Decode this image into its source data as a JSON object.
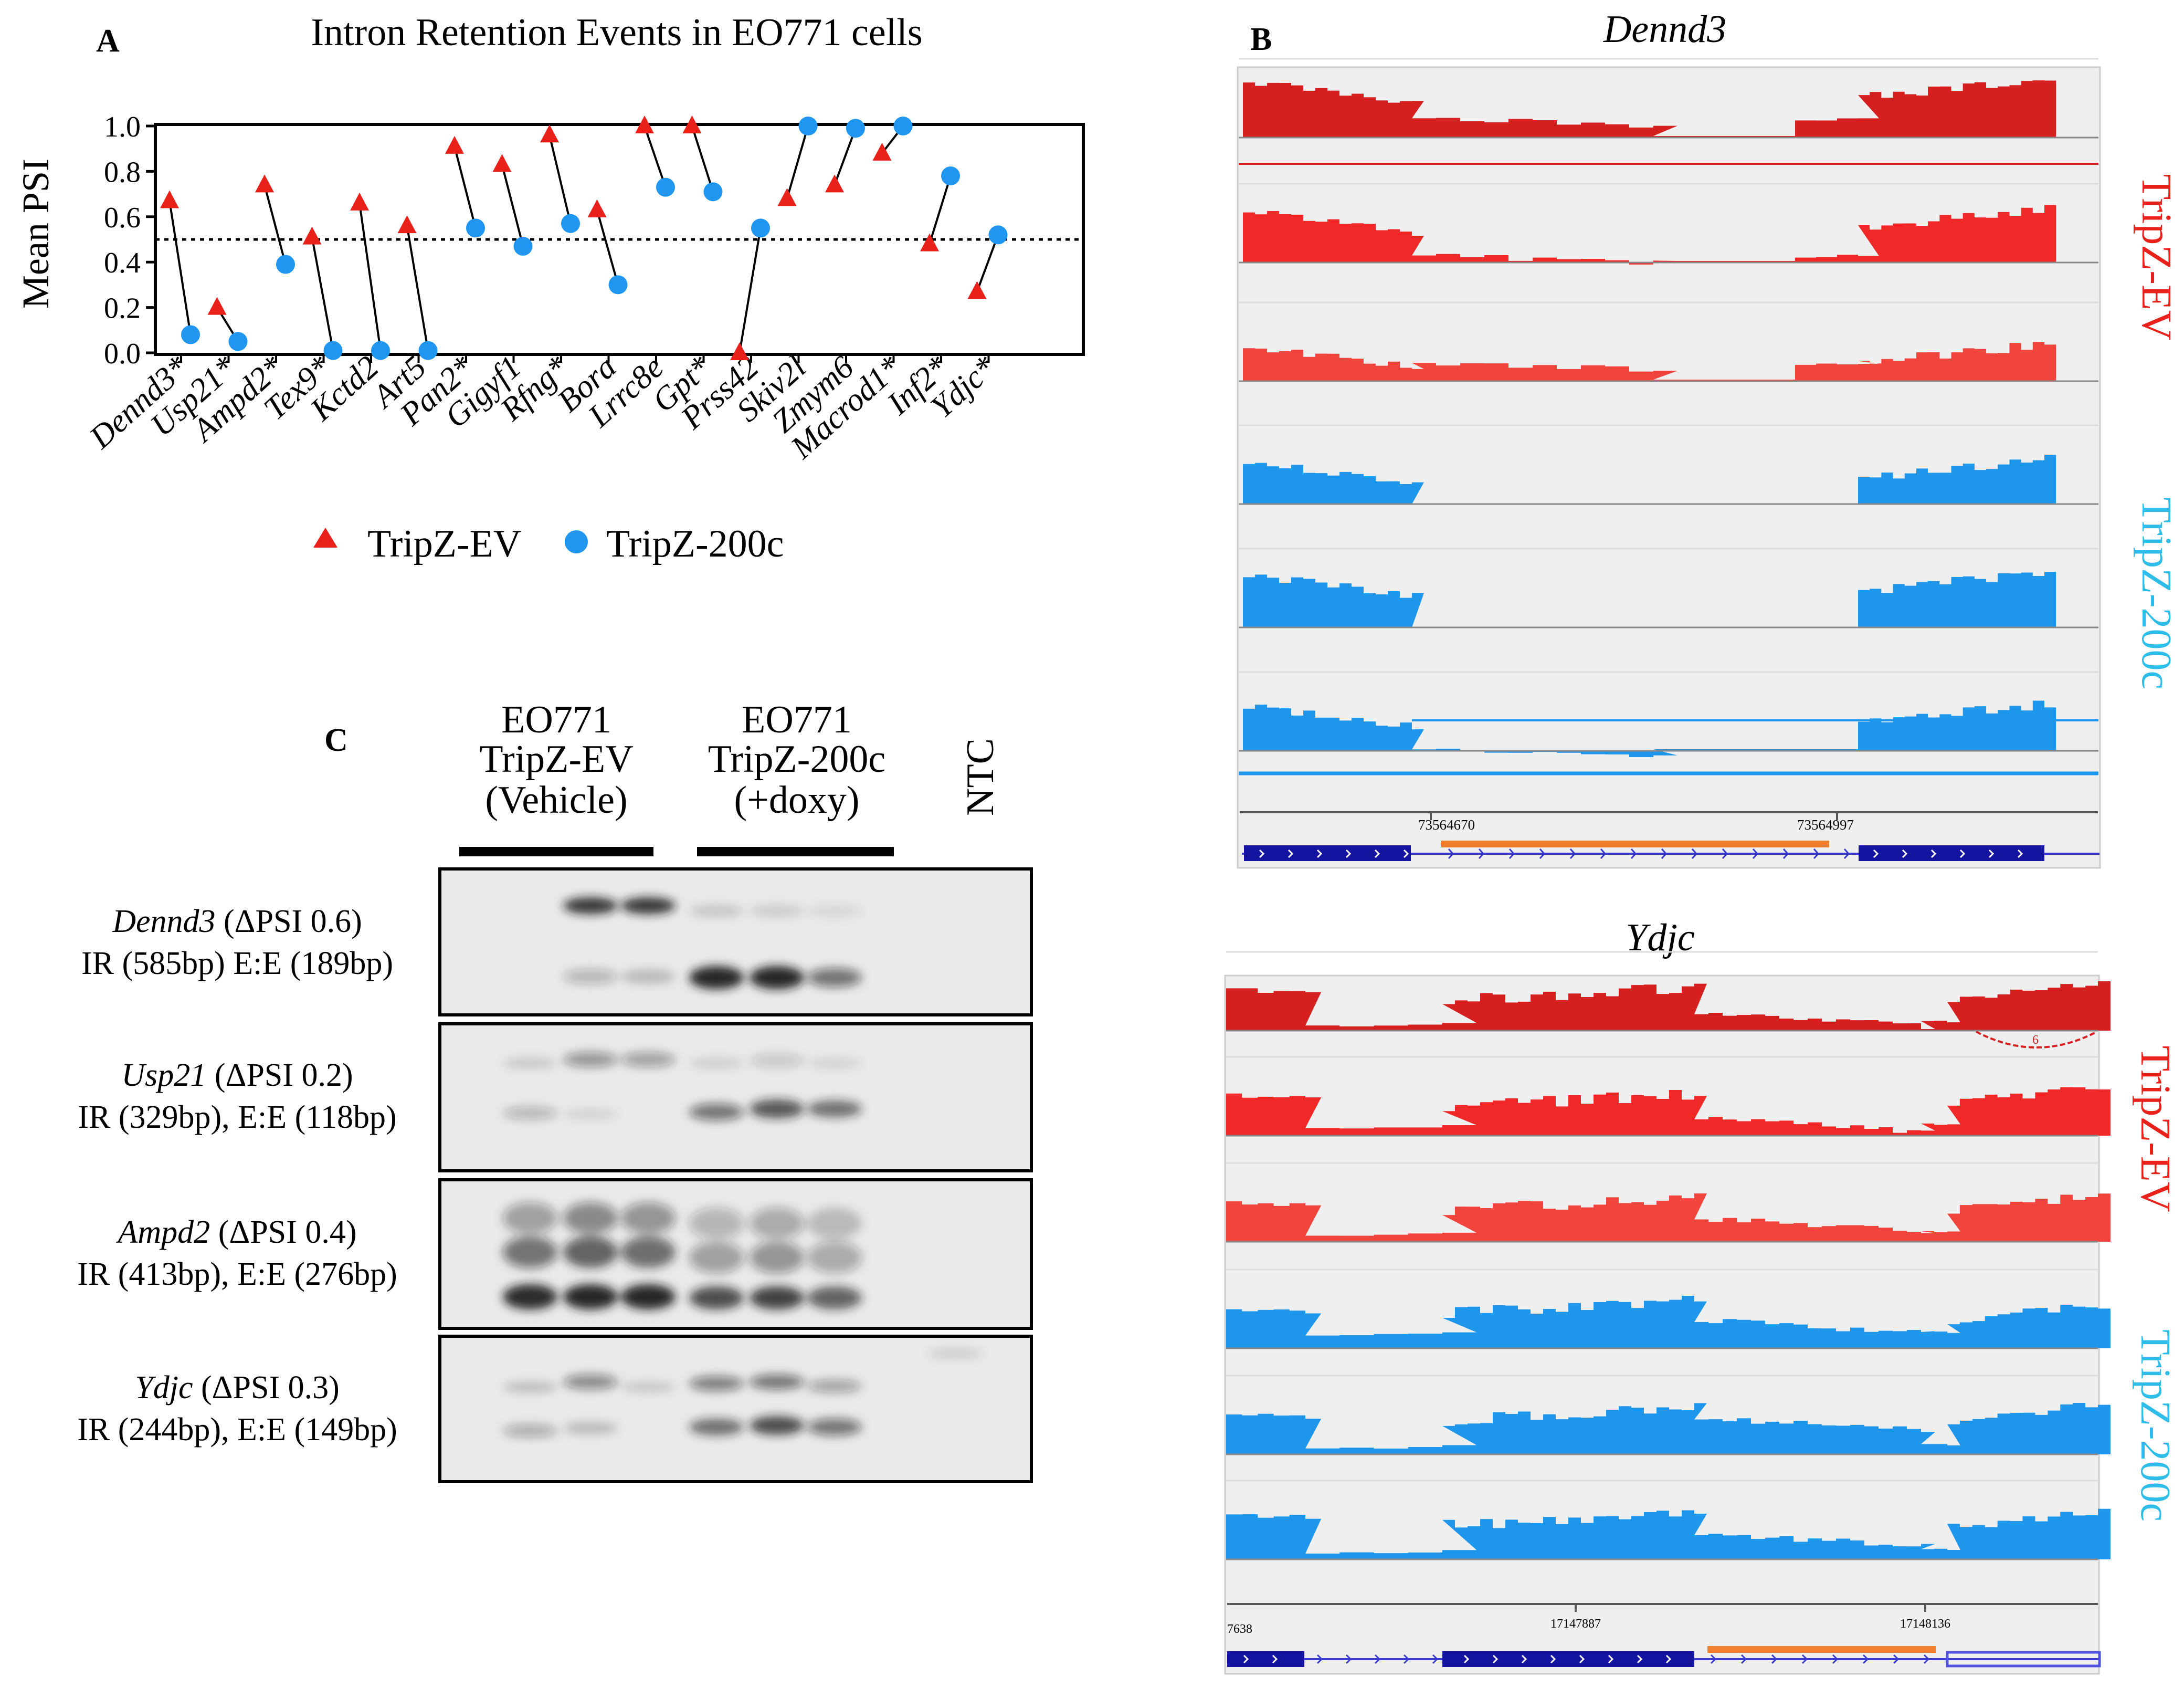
{
  "colors": {
    "ev": "#e8221a",
    "c200": "#2196f0",
    "ev_dark": "#d62020",
    "ev_mid": "#f02828",
    "ev_light": "#f0443c",
    "blue": "#1e96ec",
    "navy": "#1414a0",
    "orange": "#f08030",
    "igv_bg": "#efefef"
  },
  "panel_a": {
    "letter": "A",
    "title": "Intron Retention Events in EO771 cells",
    "legend": {
      "ev": "TripZ-EV",
      "c200": "TripZ-200c"
    }
  },
  "chart_data": {
    "type": "scatter",
    "title": "Intron Retention Events in EO771 cells",
    "ylabel": "Mean PSI",
    "xlabel": "",
    "ylim": [
      0,
      1
    ],
    "yticks": [
      "0.0",
      "0.2",
      "0.4",
      "0.6",
      "0.8",
      "1.0"
    ],
    "reference_line": 0.5,
    "categories": [
      "Dennd3*",
      "Usp21*",
      "Ampd2*",
      "Tex9*",
      "Kctd2",
      "Art5",
      "Pan2*",
      "Gigyf1",
      "Rfng*",
      "Bora",
      "Lrrc8e",
      "Gpt*",
      "Prss42",
      "Skiv2l",
      "Zmym6",
      "Macrod1*",
      "Inf2*",
      "Ydjc*"
    ],
    "series": [
      {
        "name": "TripZ-EV",
        "marker": "triangle",
        "values": [
          0.67,
          0.2,
          0.74,
          0.51,
          0.66,
          0.56,
          0.91,
          0.83,
          0.96,
          0.63,
          1.0,
          1.0,
          0.0,
          0.68,
          0.74,
          0.88,
          0.48,
          0.27
        ]
      },
      {
        "name": "TripZ-200c",
        "marker": "circle",
        "values": [
          0.08,
          0.05,
          0.39,
          0.01,
          0.01,
          0.01,
          0.55,
          0.47,
          0.57,
          0.3,
          0.73,
          0.71,
          0.55,
          1.0,
          0.99,
          1.0,
          0.78,
          0.52
        ]
      }
    ]
  },
  "panel_b": {
    "letter": "B",
    "dennd3": {
      "gene": "Dennd3",
      "coord1": "73564670",
      "coord2": "73564997"
    },
    "ydjc": {
      "gene": "Ydjc",
      "coord0": "7638",
      "coord1": "17147887",
      "coord2": "17148136",
      "junction": "6"
    },
    "label_ev": "TripZ-EV",
    "label_200c": "TripZ-200c"
  },
  "panel_c": {
    "letter": "C",
    "headers": [
      {
        "line1": "EO771",
        "line2": "TripZ-EV",
        "line3": "(Vehicle)"
      },
      {
        "line1": "EO771",
        "line2": "TripZ-200c",
        "line3": "(+doxy)"
      }
    ],
    "ntc": "NTC",
    "rows": [
      {
        "gene": "Dennd3",
        "delta": " (ΔPSI 0.6)",
        "detail": "IR (585bp) E:E (189bp)"
      },
      {
        "gene": "Usp21",
        "delta": " (ΔPSI 0.2)",
        "detail": "IR (329bp), E:E (118bp)"
      },
      {
        "gene": "Ampd2",
        "delta": " (ΔPSI 0.4)",
        "detail": "IR (413bp), E:E (276bp)"
      },
      {
        "gene": "Ydjc",
        "delta": " (ΔPSI 0.3)",
        "detail": "IR (244bp), E:E (149bp)"
      }
    ]
  }
}
